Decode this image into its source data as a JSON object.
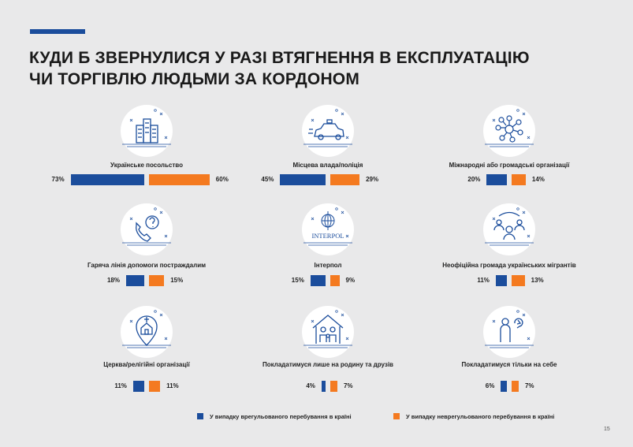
{
  "title": {
    "line1": "КУДИ Б ЗВЕРНУЛИСЯ У РАЗІ ВТЯГНЕННЯ В ЕКСПЛУАТАЦІЮ",
    "line2": "ЧИ ТОРГІВЛЮ ЛЮДЬМИ ЗА КОРДОНОМ"
  },
  "colors": {
    "accent": "#1b4d9c",
    "blue": "#1b4d9c",
    "orange": "#f47a20"
  },
  "chart_data": {
    "type": "bar",
    "title": "КУДИ Б ЗВЕРНУЛИСЯ У РАЗІ ВТЯГНЕННЯ В ЕКСПЛУАТАЦІЮ ЧИ ТОРГІВЛЮ ЛЮДЬМИ ЗА КОРДОНОМ",
    "unit": "%",
    "series": [
      {
        "name": "У випадку врегульованого перебування в країні",
        "color": "#1b4d9c"
      },
      {
        "name": "У випадку неврегульованого перебування в країні",
        "color": "#f47a20"
      }
    ],
    "categories": [
      {
        "label": "Українське посольство",
        "icon": "embassy-building-icon",
        "blue": 73,
        "orange": 60,
        "blue_text": "73%",
        "orange_text": "60%"
      },
      {
        "label": "Місцева влада/поліція",
        "icon": "police-car-icon",
        "blue": 45,
        "orange": 29,
        "blue_text": "45%",
        "orange_text": "29%"
      },
      {
        "label": "Міжнародні або громадські організації",
        "icon": "network-people-icon",
        "blue": 20,
        "orange": 14,
        "blue_text": "20%",
        "orange_text": "14%"
      },
      {
        "label": "Гаряча лінія допомоги постраждалим",
        "icon": "hotline-phone-icon",
        "blue": 18,
        "orange": 15,
        "blue_text": "18%",
        "orange_text": "15%"
      },
      {
        "label": "Інтерпол",
        "icon": "interpol-logo-icon",
        "icon_text": "INTERPOL",
        "blue": 15,
        "orange": 9,
        "blue_text": "15%",
        "orange_text": "9%"
      },
      {
        "label": "Неофіційна громада українських мігрантів",
        "icon": "migrant-community-icon",
        "blue": 11,
        "orange": 13,
        "blue_text": "11%",
        "orange_text": "13%"
      },
      {
        "label": "Церква/релігійні організації",
        "icon": "church-pin-icon",
        "blue": 11,
        "orange": 11,
        "blue_text": "11%",
        "orange_text": "11%"
      },
      {
        "label": "Покладатимуся лише на родину та друзів",
        "icon": "family-house-icon",
        "blue": 4,
        "orange": 7,
        "blue_text": "4%",
        "orange_text": "7%"
      },
      {
        "label": "Покладатимуся тільки на себе",
        "icon": "self-person-icon",
        "blue": 6,
        "orange": 7,
        "blue_text": "6%",
        "orange_text": "7%"
      }
    ]
  },
  "legend": {
    "regulated": "У випадку врегульованого перебування в країні",
    "unregulated": "У випадку неврегульованого перебування в країні"
  },
  "page_number": "15"
}
